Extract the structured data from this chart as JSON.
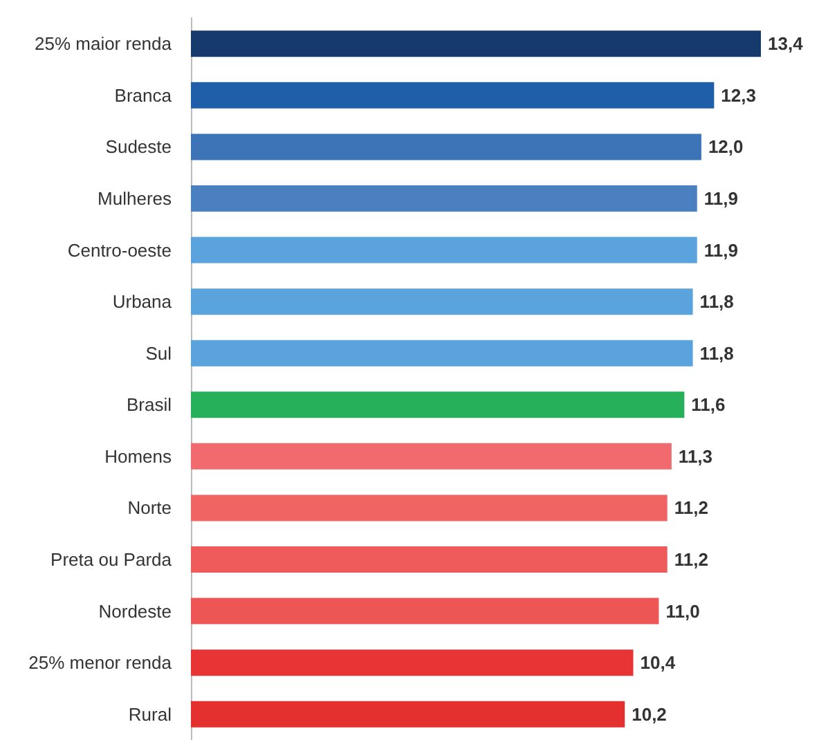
{
  "chart_data": {
    "type": "bar",
    "orientation": "horizontal",
    "categories": [
      "25% maior renda",
      "Branca",
      "Sudeste",
      "Mulheres",
      "Centro-oeste",
      "Urbana",
      "Sul",
      "Brasil",
      "Homens",
      "Norte",
      "Preta ou Parda",
      "Nordeste",
      "25% menor renda",
      "Rural"
    ],
    "values": [
      13.4,
      12.3,
      12.0,
      11.9,
      11.9,
      11.8,
      11.8,
      11.6,
      11.3,
      11.2,
      11.2,
      11.0,
      10.4,
      10.2
    ],
    "value_labels": [
      "13,4",
      "12,3",
      "12,0",
      "11,9",
      "11,9",
      "11,8",
      "11,8",
      "11,6",
      "11,3",
      "11,2",
      "11,2",
      "11,0",
      "10,4",
      "10,2"
    ],
    "colors": [
      "#153a6b",
      "#1f5ea8",
      "#3d73b7",
      "#4a7fc0",
      "#5aa3dc",
      "#5aa3dc",
      "#5aa3dc",
      "#27b05a",
      "#f06a6e",
      "#f06464",
      "#ef5b5b",
      "#ee5656",
      "#e83434",
      "#e53030"
    ]
  }
}
